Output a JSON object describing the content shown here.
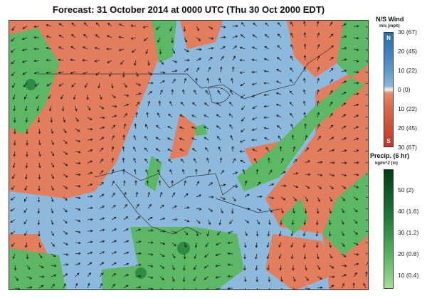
{
  "title": "Forecast: 31 October 2014 at 0000 UTC (Thu 30 Oct 2000 EDT)",
  "colors": {
    "north_wind": "#3b7fbd",
    "south_wind": "#d9533b",
    "neutral": "#f3f3f3",
    "precip_low": "#a8dc98",
    "precip_high": "#003d14",
    "borders": "#333333",
    "arrows": "#222222"
  },
  "wind_legend": {
    "title": "N/S Wind",
    "units": "m/s (mph)",
    "north_label": "N",
    "south_label": "S",
    "ticks": [
      "30 (67)",
      "20 (45)",
      "10 (22)",
      "0 (0)",
      "10 (22)",
      "20 (45)",
      "30 (67)"
    ]
  },
  "precip_legend": {
    "title": "Precip. (6 hr)",
    "units": "kg/m^2 (in)",
    "ticks": [
      "50 (2)",
      "40 (1.6)",
      "30 (1.2)",
      "20 (0.8)",
      "10 (0.4)"
    ]
  }
}
